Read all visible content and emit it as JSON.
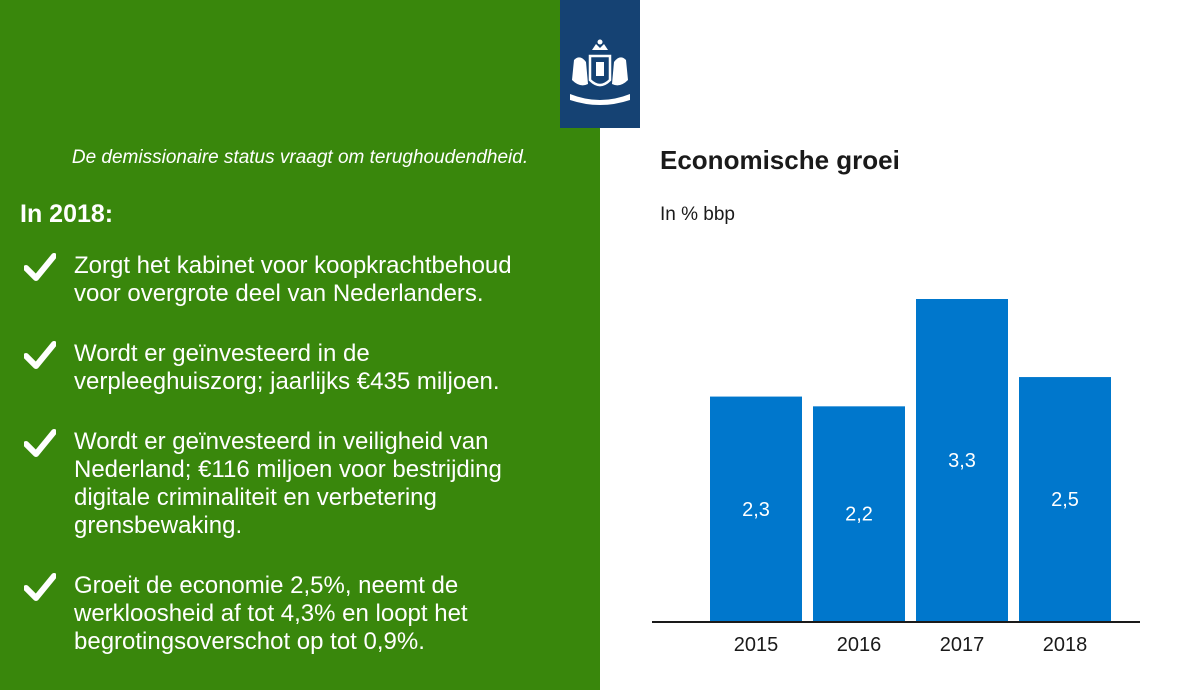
{
  "intro": "De demissionaire status vraagt om terughoudendheid.",
  "heading": "In 2018:",
  "bullets": [
    "Zorgt het kabinet voor koopkrachtbehoud voor overgrote deel van Nederlanders.",
    "Wordt er geïnvesteerd in de verpleeghuiszorg; jaarlijks €435 miljoen.",
    "Wordt er geïnvesteerd in veiligheid van Nederland; €116 miljoen voor bestrijding digitale criminaliteit en verbetering grensbewaking.",
    "Groeit de economie 2,5%, neemt de werkloosheid af tot 4,3% en loopt het begrotingsoverschot op tot 0,9%."
  ],
  "icons": {
    "bullet": "checkmark-icon",
    "logo": "rijksoverheid-coat-of-arms-logo"
  },
  "colors": {
    "panel": "#39870c",
    "bar": "#0077cc",
    "logo_bg": "#154273"
  },
  "chart_data": {
    "type": "bar",
    "title": "Economische groei",
    "ylabel": "In % bbp",
    "categories": [
      "2015",
      "2016",
      "2017",
      "2018"
    ],
    "values": [
      2.3,
      2.2,
      3.3,
      2.5
    ],
    "value_labels": [
      "2,3",
      "2,2",
      "3,3",
      "2,5"
    ],
    "ylim": [
      0,
      3.3
    ],
    "grid": false,
    "legend": "none"
  }
}
